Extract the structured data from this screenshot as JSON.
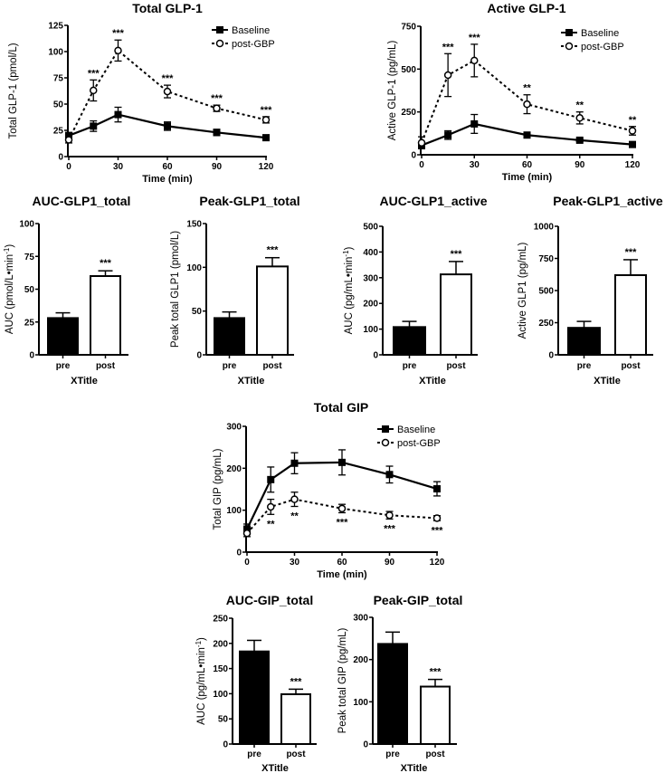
{
  "chart_data": [
    {
      "id": "total-glp1",
      "type": "line",
      "title": "Total GLP-1",
      "xlabel": "Time (min)",
      "ylabel": "Total GLP-1 (pmol/L)",
      "x": [
        0,
        15,
        30,
        60,
        90,
        120
      ],
      "xticks": [
        "0",
        "30",
        "60",
        "90",
        "120"
      ],
      "xtick_values": [
        0,
        30,
        60,
        90,
        120
      ],
      "yticks": [
        "0",
        "25",
        "50",
        "75",
        "100",
        "125"
      ],
      "ytick_values": [
        0,
        25,
        50,
        75,
        100,
        125
      ],
      "xlim": [
        0,
        120
      ],
      "ylim": [
        0,
        125
      ],
      "legend": "top-right",
      "series": [
        {
          "name": "Baseline",
          "style": "solid-filled-square",
          "values": [
            20,
            29,
            40,
            29,
            23,
            18
          ],
          "errors": [
            3,
            5,
            7,
            4,
            3,
            2
          ]
        },
        {
          "name": "post-GBP",
          "style": "dashed-open-circle",
          "values": [
            16,
            63,
            101,
            62,
            46,
            35
          ],
          "errors": [
            3,
            10,
            10,
            6,
            3,
            3
          ]
        }
      ],
      "annotations": [
        "",
        "***",
        "***",
        "***",
        "***",
        "***"
      ],
      "annotation_series": "post-GBP",
      "annotation_position": "above"
    },
    {
      "id": "active-glp1",
      "type": "line",
      "title": "Active GLP-1",
      "xlabel": "Time (min)",
      "ylabel": "Active GLP-1 (pg/mL)",
      "x": [
        0,
        15,
        30,
        60,
        90,
        120
      ],
      "xticks": [
        "0",
        "30",
        "60",
        "90",
        "120"
      ],
      "xtick_values": [
        0,
        30,
        60,
        90,
        120
      ],
      "yticks": [
        "0",
        "250",
        "500",
        "750"
      ],
      "ytick_values": [
        0,
        250,
        500,
        750
      ],
      "xlim": [
        0,
        120
      ],
      "ylim": [
        0,
        750
      ],
      "legend": "top-right",
      "series": [
        {
          "name": "Baseline",
          "style": "solid-filled-square",
          "values": [
            55,
            115,
            180,
            115,
            85,
            60
          ],
          "errors": [
            15,
            25,
            55,
            10,
            8,
            5
          ]
        },
        {
          "name": "post-GBP",
          "style": "dashed-open-circle",
          "values": [
            70,
            465,
            550,
            295,
            215,
            140
          ],
          "errors": [
            35,
            125,
            95,
            55,
            35,
            25
          ]
        }
      ],
      "annotations": [
        "",
        "***",
        "***",
        "**",
        "**",
        "**"
      ],
      "annotation_series": "post-GBP",
      "annotation_position": "above"
    },
    {
      "id": "auc-glp1-total",
      "type": "bar",
      "title": "AUC-GLP1_total",
      "xlabel": "XTitle",
      "ylabel": "AUC (pmol/L•min",
      "ylabel_sup": "-1",
      "ylabel_end": ")",
      "categories": [
        "pre",
        "post"
      ],
      "values": [
        28,
        60
      ],
      "errors": [
        4,
        4
      ],
      "fills": [
        "#000000",
        "#ffffff"
      ],
      "annotations": [
        "",
        "***"
      ],
      "yticks": [
        "0",
        "25",
        "50",
        "75",
        "100"
      ],
      "ytick_values": [
        0,
        25,
        50,
        75,
        100
      ],
      "ylim": [
        0,
        100
      ]
    },
    {
      "id": "peak-glp1-total",
      "type": "bar",
      "title": "Peak-GLP1_total",
      "xlabel": "XTitle",
      "ylabel": "Peak total GLP1 (pmol/L)",
      "categories": [
        "pre",
        "post"
      ],
      "values": [
        42,
        101
      ],
      "errors": [
        7,
        10
      ],
      "fills": [
        "#000000",
        "#ffffff"
      ],
      "annotations": [
        "",
        "***"
      ],
      "yticks": [
        "0",
        "50",
        "100",
        "150"
      ],
      "ytick_values": [
        0,
        50,
        100,
        150
      ],
      "ylim": [
        0,
        150
      ]
    },
    {
      "id": "auc-glp1-active",
      "type": "bar",
      "title": "AUC-GLP1_active",
      "xlabel": "XTitle",
      "ylabel": "AUC (pg/mL•min",
      "ylabel_sup": "-1",
      "ylabel_end": ")",
      "categories": [
        "pre",
        "post"
      ],
      "values": [
        108,
        313
      ],
      "errors": [
        22,
        50
      ],
      "fills": [
        "#000000",
        "#ffffff"
      ],
      "annotations": [
        "",
        "***"
      ],
      "yticks": [
        "0",
        "100",
        "200",
        "300",
        "400",
        "500"
      ],
      "ytick_values": [
        0,
        100,
        200,
        300,
        400,
        500
      ],
      "ylim": [
        0,
        500
      ]
    },
    {
      "id": "peak-glp1-active",
      "type": "bar",
      "title": "Peak-GLP1_active",
      "xlabel": "XTitle",
      "ylabel": "Active GLP1 (pg/mL)",
      "categories": [
        "pre",
        "post"
      ],
      "values": [
        210,
        620
      ],
      "errors": [
        50,
        120
      ],
      "fills": [
        "#000000",
        "#ffffff"
      ],
      "annotations": [
        "",
        "***"
      ],
      "yticks": [
        "0",
        "250",
        "500",
        "750",
        "1000"
      ],
      "ytick_values": [
        0,
        250,
        500,
        750,
        1000
      ],
      "ylim": [
        0,
        1000
      ]
    },
    {
      "id": "total-gip",
      "type": "line",
      "title": "Total GIP",
      "xlabel": "Time (min)",
      "ylabel": "Total GIP (pg/mL)",
      "x": [
        0,
        15,
        30,
        60,
        90,
        120
      ],
      "xticks": [
        "0",
        "30",
        "60",
        "90",
        "120"
      ],
      "xtick_values": [
        0,
        30,
        60,
        90,
        120
      ],
      "yticks": [
        "0",
        "100",
        "200",
        "300"
      ],
      "ytick_values": [
        0,
        100,
        200,
        300
      ],
      "xlim": [
        0,
        120
      ],
      "ylim": [
        0,
        300
      ],
      "legend": "top-right",
      "series": [
        {
          "name": "Baseline",
          "style": "solid-filled-square",
          "values": [
            55,
            173,
            212,
            214,
            185,
            151
          ],
          "errors": [
            12,
            30,
            25,
            30,
            20,
            17
          ]
        },
        {
          "name": "post-GBP",
          "style": "dashed-open-circle",
          "values": [
            45,
            108,
            126,
            104,
            88,
            81
          ],
          "errors": [
            8,
            18,
            17,
            10,
            9,
            6
          ]
        }
      ],
      "annotations": [
        "",
        "**",
        "**",
        "***",
        "***",
        "***"
      ],
      "annotation_series": "post-GBP",
      "annotation_position": "below"
    },
    {
      "id": "auc-gip-total",
      "type": "bar",
      "title": "AUC-GIP_total",
      "xlabel": "XTitle",
      "ylabel": "AUC (pg/mL•min",
      "ylabel_sup": "-1",
      "ylabel_end": ")",
      "categories": [
        "pre",
        "post"
      ],
      "values": [
        184,
        99
      ],
      "errors": [
        22,
        10
      ],
      "fills": [
        "#000000",
        "#ffffff"
      ],
      "annotations": [
        "",
        "***"
      ],
      "yticks": [
        "0",
        "50",
        "100",
        "150",
        "200",
        "250"
      ],
      "ytick_values": [
        0,
        50,
        100,
        150,
        200,
        250
      ],
      "ylim": [
        0,
        250
      ]
    },
    {
      "id": "peak-gip-total",
      "type": "bar",
      "title": "Peak-GIP_total",
      "xlabel": "XTitle",
      "ylabel": "Peak total GIP (pg/mL)",
      "categories": [
        "pre",
        "post"
      ],
      "values": [
        237,
        136
      ],
      "errors": [
        28,
        17
      ],
      "fills": [
        "#000000",
        "#ffffff"
      ],
      "annotations": [
        "",
        "***"
      ],
      "yticks": [
        "0",
        "100",
        "200",
        "300"
      ],
      "ytick_values": [
        0,
        100,
        200,
        300
      ],
      "ylim": [
        0,
        300
      ]
    }
  ]
}
